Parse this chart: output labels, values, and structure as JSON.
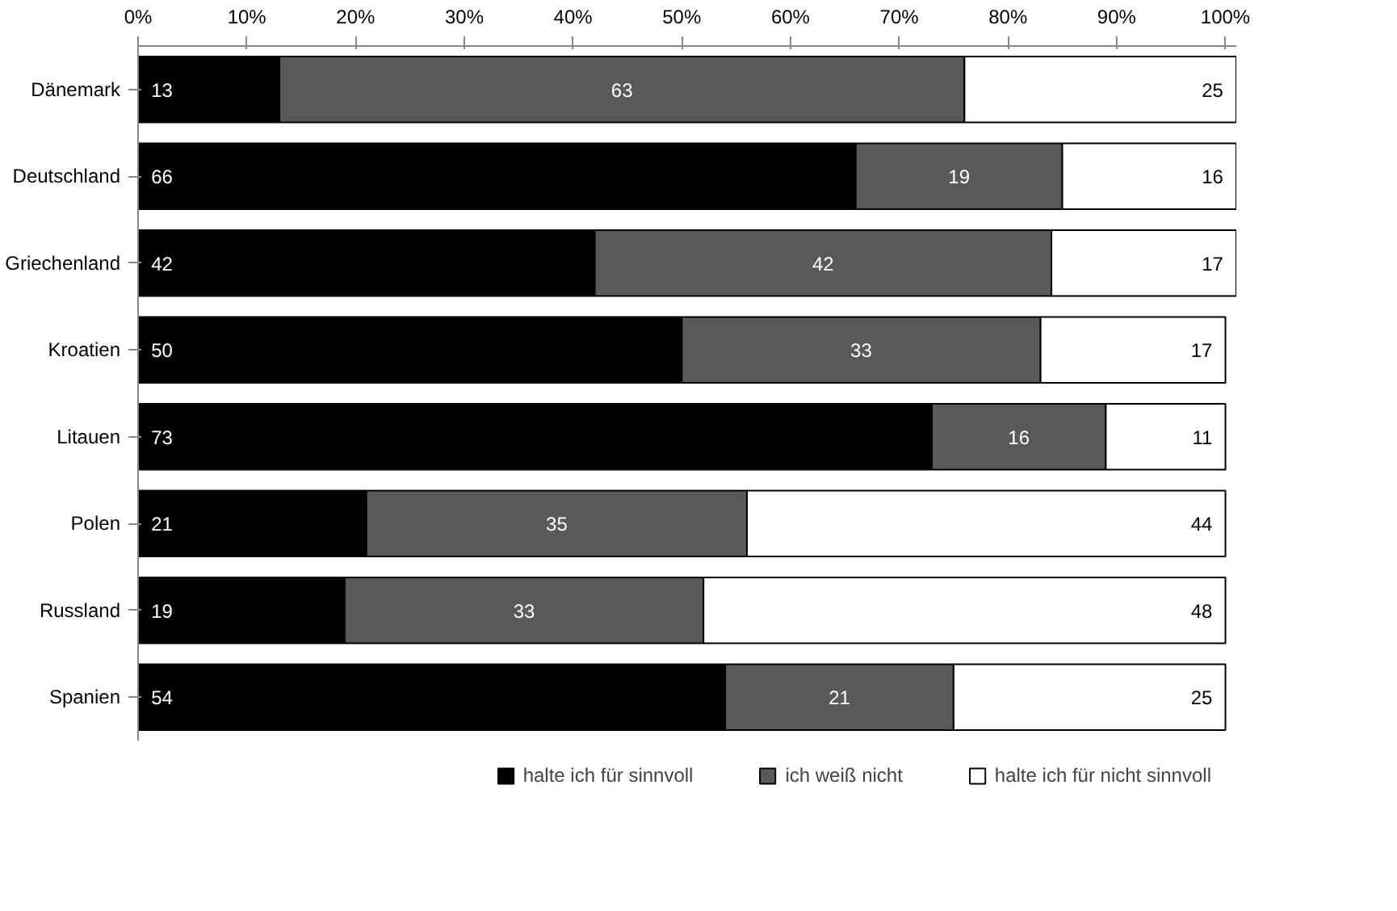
{
  "chart_data": {
    "type": "bar",
    "orientation": "horizontal",
    "stacked": true,
    "data_labels": true,
    "legend": "bottom",
    "grid": false,
    "categories": [
      "Dänemark",
      "Deutschland",
      "Griechenland",
      "Kroatien",
      "Litauen",
      "Polen",
      "Russland",
      "Spanien"
    ],
    "series": [
      {
        "name": "halte ich für sinnvoll",
        "color": "#000000",
        "values": [
          13,
          66,
          42,
          50,
          73,
          21,
          19,
          54
        ]
      },
      {
        "name": "ich weiß nicht",
        "color": "#595959",
        "values": [
          63,
          19,
          42,
          33,
          16,
          35,
          33,
          21
        ]
      },
      {
        "name": "halte ich für nicht sinnvoll",
        "color": "#ffffff",
        "values": [
          25,
          16,
          17,
          17,
          11,
          44,
          48,
          25
        ]
      }
    ],
    "xlim": [
      0,
      101
    ],
    "xticks": [
      {
        "value": 0,
        "label": "0%"
      },
      {
        "value": 10,
        "label": "10%"
      },
      {
        "value": 20,
        "label": "20%"
      },
      {
        "value": 30,
        "label": "30%"
      },
      {
        "value": 40,
        "label": "40%"
      },
      {
        "value": 50,
        "label": "50%"
      },
      {
        "value": 60,
        "label": "60%"
      },
      {
        "value": 70,
        "label": "70%"
      },
      {
        "value": 80,
        "label": "80%"
      },
      {
        "value": 90,
        "label": "90%"
      },
      {
        "value": 100,
        "label": "100%"
      }
    ]
  }
}
